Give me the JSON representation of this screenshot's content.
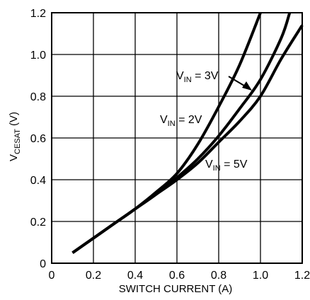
{
  "chart_data": {
    "type": "line",
    "title": "",
    "xlabel": "SWITCH CURRENT (A)",
    "ylabel_main": "V",
    "ylabel_sub": "CESAT",
    "ylabel_tail": " (V)",
    "xlim": [
      0,
      1.2
    ],
    "ylim": [
      0,
      1.2
    ],
    "grid": true,
    "x_ticks": [
      "0",
      "0.2",
      "0.4",
      "0.6",
      "0.8",
      "1.0",
      "1.2"
    ],
    "y_ticks": [
      "0",
      "0.2",
      "0.4",
      "0.6",
      "0.8",
      "1.0",
      "1.2"
    ],
    "series": [
      {
        "name": "VIN = 2V",
        "label_main": "V",
        "label_sub": "IN",
        "label_tail": " = 2V",
        "x": [
          0.1,
          0.2,
          0.3,
          0.4,
          0.5,
          0.6,
          0.7,
          0.8,
          0.9,
          1.0
        ],
        "y": [
          0.05,
          0.12,
          0.19,
          0.26,
          0.34,
          0.43,
          0.57,
          0.75,
          0.95,
          1.2
        ]
      },
      {
        "name": "VIN = 3V",
        "label_main": "V",
        "label_sub": "IN",
        "label_tail": " = 3V",
        "x": [
          0.1,
          0.2,
          0.3,
          0.4,
          0.5,
          0.6,
          0.7,
          0.8,
          0.9,
          1.0,
          1.1,
          1.14
        ],
        "y": [
          0.05,
          0.12,
          0.19,
          0.26,
          0.33,
          0.41,
          0.5,
          0.61,
          0.74,
          0.88,
          1.08,
          1.2
        ]
      },
      {
        "name": "VIN = 5V",
        "label_main": "V",
        "label_sub": "IN",
        "label_tail": " = 5V",
        "x": [
          0.1,
          0.2,
          0.3,
          0.4,
          0.5,
          0.6,
          0.7,
          0.8,
          0.9,
          1.0,
          1.1,
          1.2
        ],
        "y": [
          0.05,
          0.12,
          0.19,
          0.26,
          0.33,
          0.4,
          0.48,
          0.58,
          0.68,
          0.8,
          0.98,
          1.14
        ]
      }
    ]
  }
}
